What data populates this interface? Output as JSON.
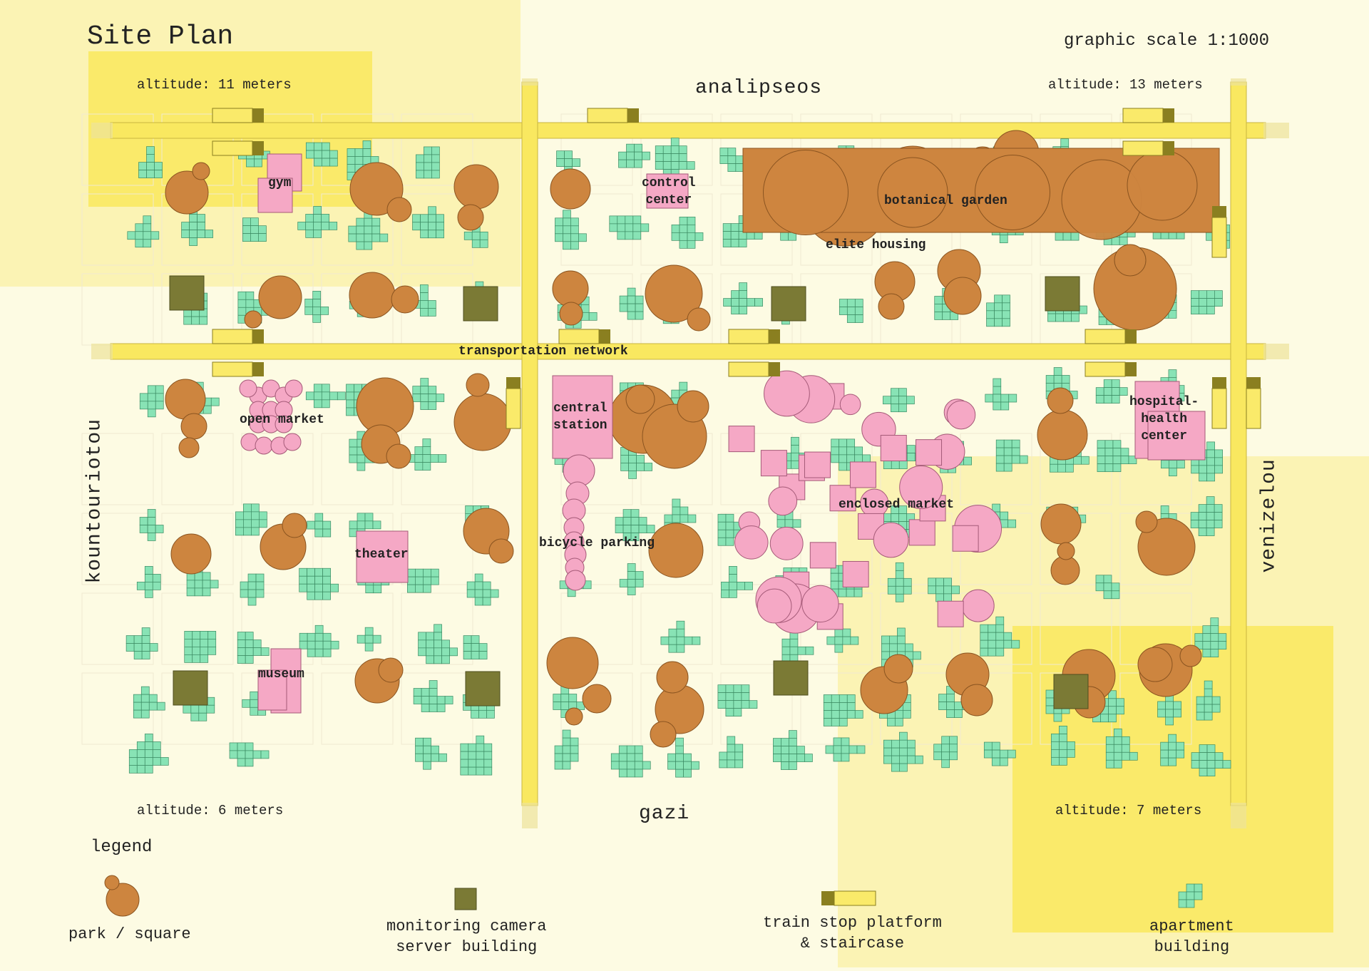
{
  "title": "Site Plan",
  "scale_label": "graphic scale 1:1000",
  "streets": {
    "north": "analipseos",
    "south": "gazi",
    "west": "kountouriotou",
    "east": "venizelou",
    "center": "transportation network"
  },
  "altitudes": {
    "nw": "altitude: 11 meters",
    "ne": "altitude: 13 meters",
    "sw": "altitude: 6 meters",
    "se": "altitude: 7 meters"
  },
  "buildings": {
    "gym": "gym",
    "control_center": [
      "control",
      "center"
    ],
    "botanical_garden": "botanical garden",
    "elite_housing": "elite housing",
    "open_market": "open market",
    "central_station": [
      "central",
      "station"
    ],
    "hospital": [
      "hospital-",
      "health",
      "center"
    ],
    "enclosed_market": "enclosed market",
    "theater": "theater",
    "bicycle_parking": "bicycle parking",
    "museum": "museum"
  },
  "legend": {
    "title": "legend",
    "park": "park / square",
    "camera": [
      "monitoring camera",
      "server building"
    ],
    "train": [
      "train stop platform",
      "& staircase"
    ],
    "apartment": [
      "apartment",
      "building"
    ]
  },
  "colors": {
    "background": "#fdfbe3",
    "altitude_zone_light": "#fbf3b4",
    "altitude_zone_strong": "#faea6a",
    "road": "#f9e860",
    "park": "#cd853f",
    "apartment": "#88e3b5",
    "civic": "#f5a8c5",
    "camera_server": "#7b7a35"
  }
}
